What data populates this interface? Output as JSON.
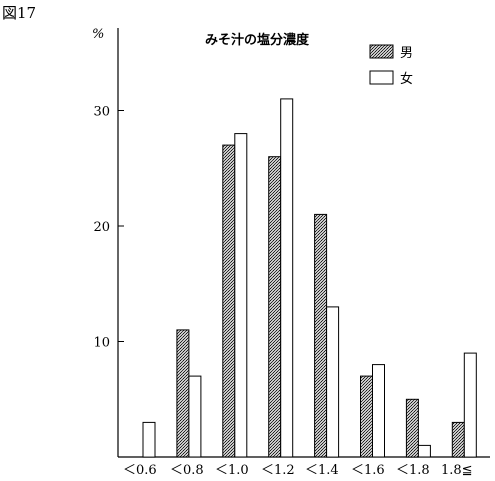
{
  "figure_label": "図17",
  "chart_data": {
    "type": "bar",
    "title": "みそ汁の塩分濃度",
    "ylabel": "%",
    "xlabel": "",
    "categories": [
      "＜0.6",
      "＜0.8",
      "＜1.0",
      "＜1.2",
      "＜1.4",
      "＜1.6",
      "＜1.8",
      "1.8≦"
    ],
    "yticks": [
      10,
      20,
      30
    ],
    "ylim": [
      0,
      38
    ],
    "grid": false,
    "legend_position": "top-right",
    "series": [
      {
        "name": "男",
        "fill": "pattern-crosshatch",
        "values": [
          0,
          11,
          27,
          26,
          21,
          7,
          5,
          3
        ]
      },
      {
        "name": "女",
        "fill": "#ffffff",
        "values": [
          3,
          7,
          28,
          31,
          13,
          8,
          1,
          9
        ]
      }
    ]
  }
}
